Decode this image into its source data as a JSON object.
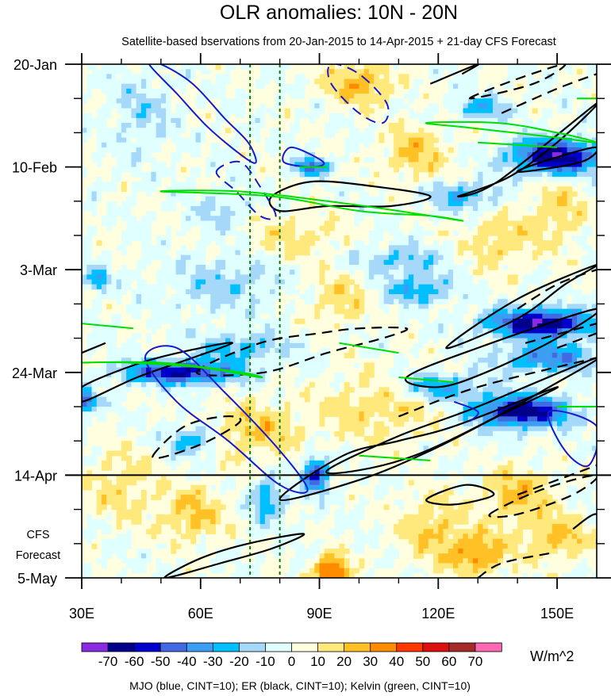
{
  "chart_data": {
    "type": "heatmap",
    "title": "OLR anomalies: 10N - 20N",
    "subtitle": "Satellite-based bservations from 20-Jan-2015 to 14-Apr-2015 + 21-day CFS Forecast",
    "x_axis": {
      "label": "",
      "range": [
        30,
        160
      ],
      "unit": "degrees east",
      "ticks": [
        {
          "value": 30,
          "label": "30E"
        },
        {
          "value": 60,
          "label": "60E"
        },
        {
          "value": 90,
          "label": "90E"
        },
        {
          "value": 120,
          "label": "120E"
        },
        {
          "value": 150,
          "label": "150E"
        }
      ]
    },
    "y_axis": {
      "label": "",
      "range_days": [
        0,
        105
      ],
      "unit": "days since 20-Jan-2015",
      "ticks": [
        {
          "day": 0,
          "label": "20-Jan"
        },
        {
          "day": 21,
          "label": "10-Feb"
        },
        {
          "day": 42,
          "label": "3-Mar"
        },
        {
          "day": 63,
          "label": "24-Mar"
        },
        {
          "day": 84,
          "label": "14-Apr"
        },
        {
          "day": 105,
          "label": "5-May"
        }
      ]
    },
    "forecast_label": [
      "CFS",
      "Forecast"
    ],
    "forecast_start_day": 84,
    "reference_lons": [
      72.5,
      80
    ],
    "colorbar": {
      "levels": [
        -70,
        -60,
        -50,
        -40,
        -30,
        -20,
        -10,
        0,
        10,
        20,
        30,
        40,
        50,
        60,
        70
      ],
      "level_labels": [
        "-70",
        "-60",
        "-50",
        "-40",
        "-30",
        "-20",
        "-10",
        "0",
        "10",
        "20",
        "30",
        "40",
        "50",
        "60",
        "70"
      ],
      "colors": [
        "#8a2be2",
        "#00008b",
        "#0000cd",
        "#4169e1",
        "#3c9ef2",
        "#00bfff",
        "#a6d8fa",
        "#e0ffff",
        "#ffffe0",
        "#ffe87c",
        "#ffc125",
        "#ff8c00",
        "#ff3800",
        "#dd1010",
        "#a52a2a",
        "#ff69b4"
      ],
      "units": "W/m^2"
    },
    "contour_legend": "MJO (blue, CINT=10); ER (black, CINT=10); Kelvin (green, CINT=10)",
    "series_colors": {
      "MJO": "#1a1acd",
      "ER": "#000000",
      "Kelvin": "#00dd00"
    },
    "anomaly_features": [
      {
        "lon": 150,
        "day": 19,
        "value": -65
      },
      {
        "lon": 144,
        "day": 53,
        "value": -70
      },
      {
        "lon": 140,
        "day": 71,
        "value": -68
      },
      {
        "lon": 55,
        "day": 63,
        "value": -60
      },
      {
        "lon": 88,
        "day": 84,
        "value": -55
      },
      {
        "lon": 88,
        "day": 21,
        "value": -40
      },
      {
        "lon": 31,
        "day": 70,
        "value": -45
      },
      {
        "lon": 93,
        "day": 104,
        "value": 45
      },
      {
        "lon": 130,
        "day": 100,
        "value": 30
      },
      {
        "lon": 100,
        "day": 4,
        "value": 25
      },
      {
        "lon": 70,
        "day": 58,
        "value": -25
      },
      {
        "lon": 110,
        "day": 40,
        "value": -20
      },
      {
        "lon": 140,
        "day": 88,
        "value": 25
      },
      {
        "lon": 150,
        "day": 97,
        "value": 25
      }
    ],
    "mjo_contours": [
      {
        "points": [
          [
            50,
            0
          ],
          [
            58,
            4
          ],
          [
            66,
            11
          ],
          [
            72,
            16
          ],
          [
            74,
            20
          ],
          [
            71,
            19
          ],
          [
            62,
            13
          ],
          [
            54,
            6
          ],
          [
            47,
            0
          ]
        ],
        "dashed": false
      },
      {
        "points": [
          [
            64,
            22
          ],
          [
            70,
            20
          ],
          [
            75,
            25
          ],
          [
            79,
            31
          ],
          [
            75,
            31
          ],
          [
            69,
            26
          ]
        ],
        "dashed": true
      },
      {
        "points": [
          [
            93,
            0
          ],
          [
            100,
            2
          ],
          [
            107,
            8
          ],
          [
            106,
            12
          ],
          [
            100,
            10
          ],
          [
            93,
            4
          ]
        ],
        "dashed": true
      },
      {
        "points": [
          [
            46,
            60
          ],
          [
            54,
            58
          ],
          [
            66,
            67
          ],
          [
            80,
            79
          ],
          [
            87,
            87
          ],
          [
            80,
            86
          ],
          [
            67,
            77
          ],
          [
            54,
            69
          ]
        ],
        "dashed": false
      },
      {
        "points": [
          [
            124,
            69
          ],
          [
            130,
            71
          ],
          [
            128,
            73
          ]
        ],
        "dashed": false
      },
      {
        "points": [
          [
            148,
            71
          ],
          [
            160,
            74
          ],
          [
            158,
            82
          ],
          [
            152,
            79
          ]
        ],
        "dashed": false
      },
      {
        "points": [
          [
            83,
            17
          ],
          [
            91,
            20
          ],
          [
            88,
            21
          ],
          [
            81,
            20
          ]
        ],
        "dashed": false
      }
    ],
    "er_contours": [
      {
        "points": [
          [
            30,
            66
          ],
          [
            45,
            61
          ],
          [
            60,
            58
          ],
          [
            68,
            57
          ],
          [
            58,
            60
          ],
          [
            44,
            64
          ],
          [
            30,
            69
          ]
        ],
        "dashed": false
      },
      {
        "points": [
          [
            48,
            80
          ],
          [
            56,
            74
          ],
          [
            66,
            72
          ],
          [
            70,
            73
          ],
          [
            62,
            77
          ],
          [
            52,
            80
          ]
        ],
        "dashed": true
      },
      {
        "points": [
          [
            59,
            63
          ],
          [
            75,
            57
          ],
          [
            90,
            55
          ],
          [
            100,
            54
          ],
          [
            112,
            54
          ],
          [
            106,
            56
          ],
          [
            92,
            59
          ],
          [
            76,
            63
          ]
        ],
        "dashed": true
      },
      {
        "points": [
          [
            78,
            27
          ],
          [
            88,
            24
          ],
          [
            104,
            25
          ],
          [
            118,
            27
          ],
          [
            108,
            29
          ],
          [
            92,
            29
          ],
          [
            80,
            30
          ]
        ],
        "dashed": false
      },
      {
        "points": [
          [
            122,
            58
          ],
          [
            140,
            48
          ],
          [
            160,
            41
          ],
          [
            152,
            45
          ],
          [
            140,
            52
          ]
        ],
        "dashed": false
      },
      {
        "points": [
          [
            112,
            64
          ],
          [
            130,
            58
          ],
          [
            160,
            50
          ],
          [
            150,
            56
          ],
          [
            132,
            63
          ],
          [
            120,
            66
          ]
        ],
        "dashed": false
      },
      {
        "points": [
          [
            92,
            83
          ],
          [
            110,
            76
          ],
          [
            130,
            70
          ],
          [
            160,
            60
          ],
          [
            148,
            66
          ],
          [
            130,
            74
          ],
          [
            114,
            80
          ],
          [
            100,
            83
          ]
        ],
        "dashed": false
      },
      {
        "points": [
          [
            80,
            89
          ],
          [
            96,
            80
          ],
          [
            110,
            77
          ],
          [
            124,
            74
          ],
          [
            150,
            66
          ],
          [
            135,
            72
          ],
          [
            118,
            79
          ],
          [
            100,
            85
          ]
        ],
        "dashed": false
      },
      {
        "points": [
          [
            125,
            27
          ],
          [
            135,
            24
          ],
          [
            160,
            8
          ],
          [
            150,
            16
          ],
          [
            138,
            23
          ]
        ],
        "dashed": false
      },
      {
        "points": [
          [
            140,
            22
          ],
          [
            150,
            19
          ],
          [
            160,
            17
          ],
          [
            156,
            20
          ]
        ],
        "dashed": false
      },
      {
        "points": [
          [
            118,
            4
          ],
          [
            130,
            0
          ],
          [
            126,
            2
          ]
        ],
        "dashed": false
      },
      {
        "points": [
          [
            128,
            7
          ],
          [
            140,
            3
          ],
          [
            152,
            0
          ],
          [
            144,
            4
          ]
        ],
        "dashed": true
      },
      {
        "points": [
          [
            136,
            10
          ],
          [
            150,
            5
          ],
          [
            160,
            2
          ]
        ],
        "dashed": true
      },
      {
        "points": [
          [
            140,
            50
          ],
          [
            150,
            45
          ],
          [
            160,
            42
          ]
        ],
        "dashed": true
      },
      {
        "points": [
          [
            150,
            58
          ],
          [
            160,
            55
          ]
        ],
        "dashed": true
      },
      {
        "points": [
          [
            110,
            72
          ],
          [
            130,
            66
          ],
          [
            160,
            60
          ]
        ],
        "dashed": true
      },
      {
        "points": [
          [
            142,
            57
          ],
          [
            160,
            53
          ]
        ],
        "dashed": true
      },
      {
        "points": [
          [
            133,
            92
          ],
          [
            146,
            87
          ],
          [
            160,
            84
          ],
          [
            154,
            88
          ],
          [
            140,
            92
          ]
        ],
        "dashed": true
      },
      {
        "points": [
          [
            140,
            88
          ],
          [
            160,
            82
          ]
        ],
        "dashed": true
      },
      {
        "points": [
          [
            130,
            105
          ],
          [
            136,
            102
          ],
          [
            148,
            100
          ]
        ],
        "dashed": true
      },
      {
        "points": [
          [
            117,
            89
          ],
          [
            127,
            86
          ],
          [
            134,
            88
          ],
          [
            124,
            90
          ]
        ],
        "dashed": false
      },
      {
        "points": [
          [
            154,
            95
          ],
          [
            160,
            92
          ],
          [
            160,
            98
          ]
        ],
        "dashed": false
      },
      {
        "points": [
          [
            51,
            105
          ],
          [
            60,
            101
          ],
          [
            72,
            98
          ],
          [
            86,
            96
          ],
          [
            78,
            99
          ],
          [
            65,
            102
          ]
        ],
        "dashed": false
      },
      {
        "points": [
          [
            30,
            59
          ],
          [
            36,
            57
          ]
        ],
        "dashed": false
      }
    ],
    "kelvin_contours": [
      {
        "points": [
          [
            50,
            26
          ],
          [
            70,
            26
          ],
          [
            92,
            28
          ],
          [
            110,
            30
          ],
          [
            126,
            32
          ],
          [
            118,
            31
          ],
          [
            100,
            30
          ],
          [
            78,
            27
          ]
        ],
        "dashed": false
      },
      {
        "points": [
          [
            30,
            61
          ],
          [
            50,
            61
          ],
          [
            70,
            63
          ],
          [
            75,
            64
          ],
          [
            60,
            62
          ],
          [
            42,
            61
          ]
        ],
        "dashed": false
      },
      {
        "points": [
          [
            117,
            12
          ],
          [
            135,
            12
          ],
          [
            150,
            14
          ],
          [
            160,
            16
          ],
          [
            150,
            15
          ],
          [
            128,
            13
          ]
        ],
        "dashed": false
      },
      {
        "points": [
          [
            85,
            21
          ],
          [
            92,
            21
          ]
        ],
        "dashed": false
      },
      {
        "points": [
          [
            95,
            57
          ],
          [
            110,
            59
          ]
        ],
        "dashed": false
      },
      {
        "points": [
          [
            30,
            53
          ],
          [
            43,
            54
          ]
        ],
        "dashed": false
      },
      {
        "points": [
          [
            110,
            64
          ],
          [
            124,
            65
          ]
        ],
        "dashed": false
      },
      {
        "points": [
          [
            130,
            16
          ],
          [
            150,
            17
          ]
        ],
        "dashed": false
      },
      {
        "points": [
          [
            100,
            80
          ],
          [
            118,
            81
          ]
        ],
        "dashed": false
      },
      {
        "points": [
          [
            155,
            7
          ],
          [
            160,
            7
          ]
        ],
        "dashed": false
      },
      {
        "points": [
          [
            150,
            70
          ],
          [
            160,
            70
          ]
        ],
        "dashed": false
      }
    ]
  }
}
